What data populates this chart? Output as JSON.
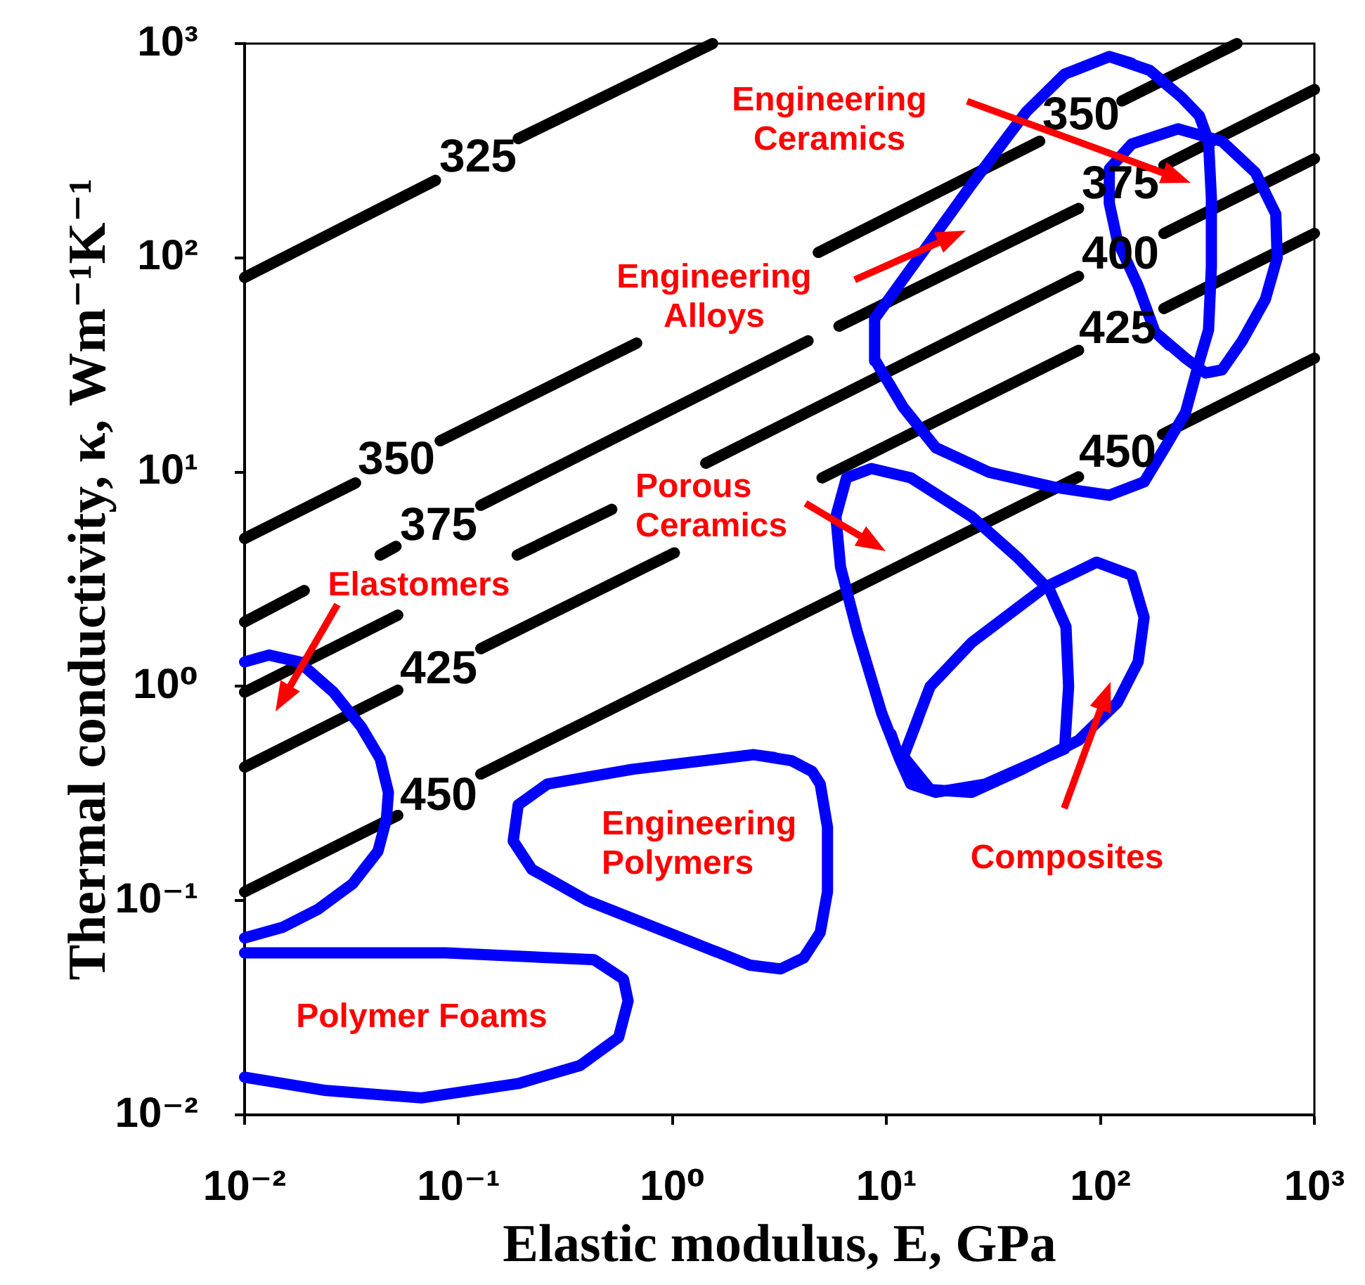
{
  "chart_data": {
    "type": "line",
    "xlabel": "Elastic modulus, E, GPa",
    "ylabel": "Thermal conductivity, κ, Wm⁻¹K⁻¹",
    "log": "xy",
    "marker": "none",
    "xlim": [
      0.01,
      1000
    ],
    "ylim": [
      0.01,
      1000
    ],
    "xticks": [
      {
        "value": 0.01,
        "label": "10⁻²"
      },
      {
        "value": 0.1,
        "label": "10⁻¹"
      },
      {
        "value": 1,
        "label": "10⁰"
      },
      {
        "value": 10,
        "label": "10¹"
      },
      {
        "value": 100,
        "label": "10²"
      },
      {
        "value": 1000,
        "label": "10³"
      }
    ],
    "yticks": [
      {
        "value": 0.01,
        "label": "10⁻²"
      },
      {
        "value": 0.1,
        "label": "10⁻¹"
      },
      {
        "value": 1,
        "label": "10⁰"
      },
      {
        "value": 10,
        "label": "10¹"
      },
      {
        "value": 100,
        "label": "10²"
      },
      {
        "value": 1000,
        "label": "10³"
      }
    ],
    "series": [
      {
        "color": "#000000",
        "x": [
          0.01,
          0.078,
          0.12,
          0.19,
          1.54
        ],
        "values": [
          81,
          230,
          null,
          360,
          1000
        ]
      },
      {
        "color": "#000000",
        "x": [
          0.01,
          0.033,
          0.05,
          0.082,
          0.68,
          2,
          4.8,
          52,
          80,
          126,
          435
        ],
        "values": [
          4.9,
          8.9,
          null,
          14,
          40,
          null,
          106,
          350,
          null,
          540,
          1000
        ]
      },
      {
        "color": "#000000",
        "x": [
          0.01,
          0.019,
          0.03,
          0.043,
          0.051,
          0.08,
          0.127,
          4.3,
          5,
          6,
          79,
          124,
          198,
          1000
        ],
        "values": [
          2,
          2.8,
          null,
          4.1,
          4.5,
          null,
          7,
          41,
          null,
          48,
          170,
          null,
          270,
          610
        ]
      },
      {
        "color": "#000000",
        "x": [
          0.01,
          0.052,
          0.1,
          0.188,
          0.52,
          0.9,
          1.43,
          79,
          124,
          198,
          1000
        ],
        "values": [
          0.94,
          2.15,
          null,
          4.1,
          6.7,
          null,
          11,
          82,
          null,
          130,
          290
        ]
      },
      {
        "color": "#000000",
        "x": [
          0.01,
          0.052,
          0.08,
          0.127,
          1.02,
          2,
          5,
          79,
          124,
          198,
          1000
        ],
        "values": [
          0.42,
          0.96,
          null,
          1.5,
          4.2,
          null,
          9.4,
          37,
          null,
          58,
          130
        ]
      },
      {
        "color": "#000000",
        "x": [
          0.01,
          0.052,
          0.08,
          0.127,
          79,
          124,
          195,
          1000
        ],
        "values": [
          0.11,
          0.25,
          null,
          0.39,
          9.5,
          null,
          15,
          34
        ]
      },
      {
        "color": "#0000ff",
        "x": [
          0.01,
          0.013,
          0.018,
          0.026,
          0.035,
          0.043,
          0.047,
          0.046,
          0.042,
          0.032,
          0.022,
          0.015,
          0.01
        ],
        "values": [
          1.3,
          1.4,
          1.3,
          0.94,
          0.65,
          0.46,
          0.32,
          0.24,
          0.17,
          0.12,
          0.091,
          0.075,
          0.067
        ]
      },
      {
        "color": "#0000ff",
        "x": [
          0.01,
          0.087,
          0.43,
          0.59,
          0.62,
          0.56,
          0.37,
          0.19,
          0.067,
          0.024,
          0.01
        ],
        "values": [
          0.057,
          0.057,
          0.053,
          0.043,
          0.034,
          0.023,
          0.017,
          0.014,
          0.012,
          0.013,
          0.015
        ]
      },
      {
        "color": "#0000ff",
        "x": [
          2.4,
          3.6,
          4.5,
          4.9,
          5.3,
          5.3,
          4.9,
          4.1,
          3.2,
          2.3,
          1.1,
          0.4,
          0.22,
          0.18,
          0.19,
          0.26,
          0.65,
          2.4,
          3
        ],
        "values": [
          0.48,
          0.45,
          0.4,
          0.35,
          0.22,
          0.11,
          0.071,
          0.054,
          0.048,
          0.05,
          0.067,
          0.1,
          0.14,
          0.19,
          0.28,
          0.35,
          0.41,
          0.48,
          0.465
        ]
      },
      {
        "color": "#0000ff",
        "x": [
          11.5,
          9.5,
          7.3,
          6.1,
          5.8,
          6.5,
          8.5,
          13,
          25,
          41,
          58,
          69,
          71,
          68,
          29,
          17,
          13,
          11.5,
          10.5
        ],
        "values": [
          0.46,
          0.75,
          1.8,
          3.6,
          6.2,
          9.4,
          10.4,
          9.4,
          6.2,
          4,
          2.8,
          1.9,
          1,
          0.51,
          0.35,
          0.32,
          0.35,
          0.46,
          0.6
        ]
      },
      {
        "color": "#0000ff",
        "x": [
          12,
          16,
          25,
          55,
          96,
          140,
          160,
          150,
          120,
          79,
          43,
          25,
          16,
          12,
          14
        ],
        "values": [
          0.47,
          1,
          1.6,
          2.9,
          3.8,
          3.3,
          2.1,
          1.3,
          0.84,
          0.56,
          0.41,
          0.32,
          0.33,
          0.47,
          0.7
        ]
      },
      {
        "color": "#0000ff",
        "x": [
          110,
          170,
          240,
          290,
          320,
          330,
          330,
          320,
          290,
          250,
          200,
          160,
          110,
          61,
          30,
          17,
          12,
          8.9,
          8.8,
          25,
          45,
          68,
          110,
          140
        ],
        "values": [
          870,
          750,
          560,
          460,
          350,
          190,
          91,
          46,
          33,
          19,
          13,
          9,
          7.8,
          8.5,
          10,
          13,
          20,
          33,
          52,
          220,
          480,
          720,
          870,
          810
        ]
      },
      {
        "color": "#0000ff",
        "x": [
          180,
          250,
          310,
          370,
          460,
          590,
          670,
          660,
          530,
          370,
          230,
          140,
          110,
          110,
          120,
          150,
          180,
          210
        ],
        "values": [
          45,
          34,
          29,
          30,
          41,
          64,
          100,
          160,
          250,
          350,
          400,
          340,
          260,
          180,
          120,
          74,
          45,
          39
        ]
      }
    ],
    "annotations": [
      "325",
      "350",
      "375",
      "425",
      "450",
      "350",
      "375",
      "400",
      "425",
      "450",
      "Engineering\nCeramics",
      "Engineering\nAlloys",
      "Porous\nCeramics",
      "Elastomers",
      "Composites",
      "Engineering\nPolymers",
      "Polymer Foams"
    ]
  }
}
